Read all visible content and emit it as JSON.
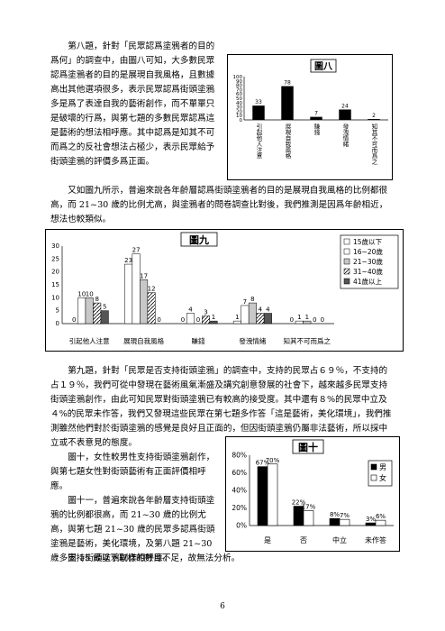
{
  "paragraphs": {
    "p1": "第八題，針對「民眾認爲塗鴉者的目的爲何」的調查中，由圖八可知，大多數民眾認爲塗鴉者的目的是展現自我風格，且數據高出其他選項很多，表示民眾認爲街頭塗鴉多是爲了表達自我的藝術創作，而不單單只是破壞的行爲，與第七題的多數民眾認爲這是藝術的想法相呼應。其中認爲是知其不可而爲之的反社會想法占極少，表示民眾給予街頭塗鴉的評價多爲正面。",
    "p2": "又如圖九所示，普遍來說各年齡層認爲街頭塗鴉者的目的是展現自我風格的比例都很高，而 21~30 歲的比例尤高，與塗鴉者的問卷調查比對後，我們推測是因爲年齡相近，想法也較類似。",
    "p3": "第九題，針對「民眾是否支持街頭塗鴉」的調查中，支持的民眾占６９％，不支持的占１９％，我們可從中發現在藝術風氣漸盛及講究創意發展的社會下，越來越多民眾支持街頭塗鴉創作，由此可知民眾對街頭塗鴉已有較高的接受度。其中還有８%的民眾中立及４%的民眾未作答，我們又發現這些民眾在第七題多作答「這是藝術，美化環境」，我們推測雖然他們對於街頭塗鴉的感覺是良好且正面的，但因街頭塗鴉仍屬非法藝術，所以採中立或不表意見的態度。",
    "p4": "圖十，女性較男性支持街頭塗鴉創作，與第七題女性對街頭藝術有正面評價相呼應。",
    "p5": "圖十一，普遍來說各年齡層支持街頭塗鴉的比例都很高，而 21~30 歲的比例尤高，與第七題 21~30 歲的民眾多認爲街頭塗鴉是藝術，美化環境，及第八題 21~30 歲多支持街頭塗鴉創作相呼應。",
    "p6": "因 15 歲以下取樣的數目不足，故無法分析。"
  },
  "page_number": "6",
  "chart_data": [
    {
      "type": "bar",
      "title": "圖八",
      "categories": [
        "引起他人注意",
        "展現自我風格",
        "賺錢",
        "發洩情緒",
        "知其不可而爲之"
      ],
      "values": [
        33,
        78,
        7,
        24,
        2
      ],
      "ylim": [
        0,
        100
      ],
      "yticks": [
        0,
        10,
        20,
        30,
        40,
        50,
        60,
        70,
        80,
        90,
        100
      ],
      "bar_color": "#000000",
      "legend": "none"
    },
    {
      "type": "bar",
      "title": "圖九",
      "categories": [
        "引起他人注意",
        "展現自我風格",
        "賺錢",
        "發洩情緒",
        "知其不可而爲之"
      ],
      "series": [
        {
          "name": "15歲以下",
          "values": [
            0,
            23,
            0,
            1,
            0
          ],
          "fill": "#ffffff"
        },
        {
          "name": "16~20歲",
          "values": [
            10,
            27,
            4,
            7,
            1
          ],
          "fill": "#ffffff"
        },
        {
          "name": "21~30歲",
          "values": [
            10,
            17,
            0,
            8,
            1
          ],
          "fill": "#c8c8c8"
        },
        {
          "name": "31~40歲",
          "values": [
            8,
            12,
            3,
            4,
            0
          ],
          "fill": "hatch"
        },
        {
          "name": "41歲以上",
          "values": [
            5,
            0,
            1,
            4,
            0
          ],
          "fill": "#555555"
        }
      ],
      "ylim": [
        0,
        30
      ],
      "yticks": [
        0,
        5,
        10,
        15,
        20,
        25,
        30
      ],
      "legend": "top-right"
    },
    {
      "type": "bar",
      "title": "圖十",
      "categories": [
        "是",
        "否",
        "中立",
        "未作答"
      ],
      "series": [
        {
          "name": "男",
          "values": [
            67,
            22,
            8,
            3
          ],
          "fill": "#000000"
        },
        {
          "name": "女",
          "values": [
            70,
            17,
            7,
            6
          ],
          "fill": "#ffffff"
        }
      ],
      "ylim": [
        0,
        80
      ],
      "yticks": [
        0,
        20,
        40,
        60,
        80
      ],
      "yunit": "%",
      "legend": "top-right"
    }
  ]
}
